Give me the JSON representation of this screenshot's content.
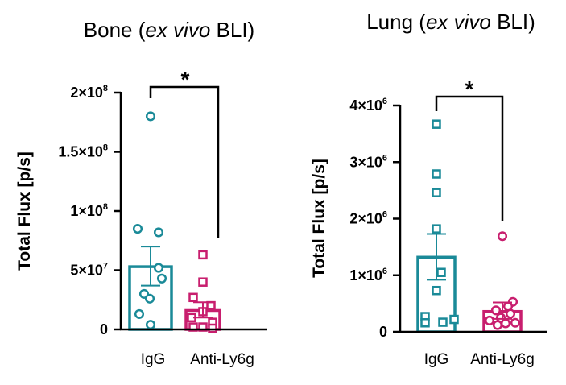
{
  "chart_data": [
    {
      "type": "bar",
      "title_prefix": "Bone (",
      "title_italic": "ex vivo",
      "title_suffix": " BLI)",
      "ylabel": "Total Flux [p/s]",
      "xlabel": "",
      "ylim": [
        0,
        200000000
      ],
      "yticks": [
        {
          "value": 0,
          "mantissa": "0",
          "exponent": ""
        },
        {
          "value": 50000000,
          "mantissa": "5×10",
          "exponent": "7"
        },
        {
          "value": 100000000,
          "mantissa": "1×10",
          "exponent": "8"
        },
        {
          "value": 150000000,
          "mantissa": "1.5×10",
          "exponent": "8"
        },
        {
          "value": 200000000,
          "mantissa": "2×10",
          "exponent": "8"
        }
      ],
      "categories": [
        "IgG",
        "Anti-Ly6g"
      ],
      "series": [
        {
          "name": "IgG",
          "color": "#1a8a98",
          "marker": "circle",
          "mean": 53000000,
          "sem_low": 37000000,
          "sem_high": 70000000,
          "points": [
            180000000,
            85000000,
            82000000,
            52000000,
            43000000,
            30000000,
            26000000,
            13000000,
            4000000
          ]
        },
        {
          "name": "Anti-Ly6g",
          "color": "#c81e6e",
          "marker": "square",
          "mean": 16000000,
          "sem_low": 10000000,
          "sem_high": 23000000,
          "points": [
            63000000,
            40000000,
            27000000,
            20000000,
            15000000,
            10000000,
            6000000,
            2000000,
            2000000,
            1000000
          ]
        }
      ],
      "significance": {
        "from": 0,
        "to": 1,
        "label": "*"
      }
    },
    {
      "type": "bar",
      "title_prefix": "Lung (",
      "title_italic": "ex vivo",
      "title_suffix": " BLI)",
      "ylabel": "Total Flux [p/s]",
      "xlabel": "",
      "ylim": [
        0,
        4000000
      ],
      "yticks": [
        {
          "value": 0,
          "mantissa": "0",
          "exponent": ""
        },
        {
          "value": 1000000,
          "mantissa": "1×10",
          "exponent": "6"
        },
        {
          "value": 2000000,
          "mantissa": "2×10",
          "exponent": "6"
        },
        {
          "value": 3000000,
          "mantissa": "3×10",
          "exponent": "6"
        },
        {
          "value": 4000000,
          "mantissa": "4×10",
          "exponent": "6"
        }
      ],
      "categories": [
        "IgG",
        "Anti-Ly6g"
      ],
      "series": [
        {
          "name": "IgG",
          "color": "#1a8a98",
          "marker": "square",
          "mean": 1320000,
          "sem_low": 920000,
          "sem_high": 1730000,
          "points": [
            3670000,
            2790000,
            2460000,
            1820000,
            1050000,
            730000,
            270000,
            220000,
            170000,
            160000
          ]
        },
        {
          "name": "Anti-Ly6g",
          "color": "#c81e6e",
          "marker": "circle",
          "mean": 360000,
          "sem_low": 230000,
          "sem_high": 520000,
          "points": [
            1690000,
            530000,
            450000,
            380000,
            320000,
            250000,
            200000,
            160000,
            150000,
            120000
          ]
        }
      ],
      "significance": {
        "from": 0,
        "to": 1,
        "label": "*"
      }
    }
  ]
}
